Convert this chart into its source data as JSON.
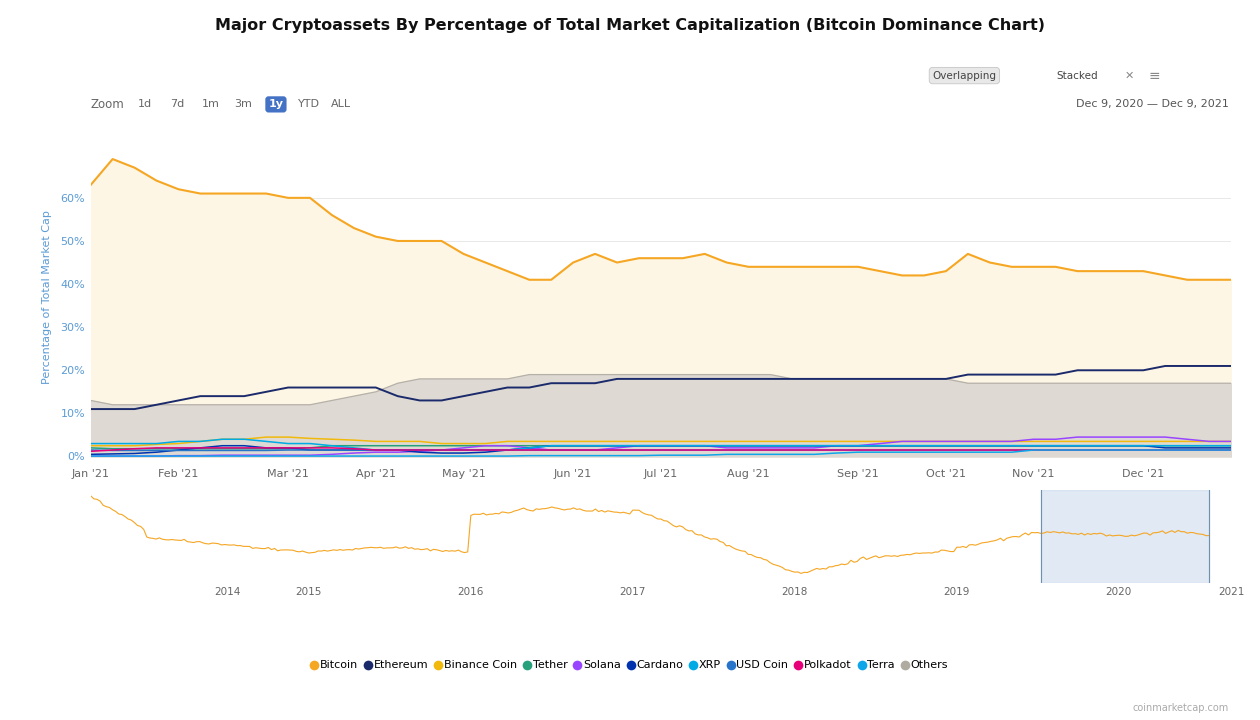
{
  "title": "Major Cryptoassets By Percentage of Total Market Capitalization (Bitcoin Dominance Chart)",
  "ylabel": "Percentage of Total Market Cap",
  "date_range": "Dec 9, 2020 — Dec 9, 2021",
  "zoom_label": "Zoom",
  "zoom_options": [
    "1d",
    "7d",
    "1m",
    "3m",
    "1y",
    "YTD",
    "ALL"
  ],
  "zoom_selected": "1y",
  "watermark": "coinmarketcap.com",
  "background_color": "#ffffff",
  "grid_color": "#e8e8e8",
  "colors": {
    "Bitcoin": "#f5a623",
    "Ethereum": "#1b2a6b",
    "BinanceCoin": "#f0b90b",
    "Tether": "#26a17b",
    "Solana": "#9945ff",
    "Cardano": "#0033ad",
    "XRP": "#00aae4",
    "USDCoin": "#2775ca",
    "Polkadot": "#e6007a",
    "Terra": "#0fa5e9",
    "Others": "#b0aba0"
  },
  "fill_btc": "#fef6e4",
  "fill_others": "#dedad3",
  "legend_items": [
    "Bitcoin",
    "Ethereum",
    "Binance Coin",
    "Tether",
    "Solana",
    "Cardano",
    "XRP",
    "USD Coin",
    "Polkadot",
    "Terra",
    "Others"
  ],
  "legend_colors": [
    "#f5a623",
    "#1b2a6b",
    "#f0b90b",
    "#26a17b",
    "#9945ff",
    "#0033ad",
    "#00aae4",
    "#2775ca",
    "#e6007a",
    "#0fa5e9",
    "#b0aba0"
  ],
  "n_points": 53,
  "bitcoin": [
    63,
    69,
    67,
    64,
    62,
    61,
    61,
    61,
    61,
    60,
    60,
    56,
    53,
    51,
    50,
    50,
    50,
    47,
    45,
    43,
    41,
    41,
    45,
    47,
    45,
    46,
    46,
    46,
    47,
    45,
    44,
    44,
    44,
    44,
    44,
    44,
    43,
    42,
    42,
    43,
    47,
    45,
    44,
    44,
    44,
    43,
    43,
    43,
    43,
    42,
    41,
    41,
    41
  ],
  "ethereum": [
    11,
    11,
    11,
    12,
    13,
    14,
    14,
    14,
    15,
    16,
    16,
    16,
    16,
    16,
    14,
    13,
    13,
    14,
    15,
    16,
    16,
    17,
    17,
    17,
    18,
    18,
    18,
    18,
    18,
    18,
    18,
    18,
    18,
    18,
    18,
    18,
    18,
    18,
    18,
    18,
    19,
    19,
    19,
    19,
    19,
    20,
    20,
    20,
    20,
    21,
    21,
    21,
    21
  ],
  "others": [
    13,
    12,
    12,
    12,
    12,
    12,
    12,
    12,
    12,
    12,
    12,
    13,
    14,
    15,
    17,
    18,
    18,
    18,
    18,
    18,
    19,
    19,
    19,
    19,
    19,
    19,
    19,
    19,
    19,
    19,
    19,
    19,
    18,
    18,
    18,
    18,
    18,
    18,
    18,
    18,
    17,
    17,
    17,
    17,
    17,
    17,
    17,
    17,
    17,
    17,
    17,
    17,
    17
  ],
  "binance": [
    2.5,
    2.5,
    2.5,
    2.8,
    3.0,
    3.5,
    4.0,
    4.0,
    4.5,
    4.5,
    4.2,
    4.0,
    3.8,
    3.5,
    3.5,
    3.5,
    3.0,
    3.0,
    3.0,
    3.5,
    3.5,
    3.5,
    3.5,
    3.5,
    3.5,
    3.5,
    3.5,
    3.5,
    3.5,
    3.5,
    3.5,
    3.5,
    3.5,
    3.5,
    3.5,
    3.5,
    3.5,
    3.5,
    3.5,
    3.5,
    3.5,
    3.5,
    3.5,
    3.5,
    3.5,
    3.5,
    3.5,
    3.5,
    3.5,
    3.5,
    3.5,
    3.5,
    3.5
  ],
  "tether": [
    2.0,
    1.8,
    1.8,
    1.8,
    1.8,
    1.8,
    1.8,
    1.8,
    1.8,
    1.8,
    2.0,
    2.5,
    2.5,
    2.5,
    2.5,
    2.5,
    2.5,
    2.5,
    2.5,
    2.5,
    2.5,
    2.5,
    2.5,
    2.5,
    2.5,
    2.5,
    2.5,
    2.5,
    2.5,
    2.5,
    2.5,
    2.5,
    2.5,
    2.5,
    2.5,
    2.5,
    2.5,
    2.5,
    2.5,
    2.5,
    2.5,
    2.5,
    2.5,
    2.5,
    2.5,
    2.5,
    2.5,
    2.5,
    2.5,
    2.5,
    2.5,
    2.5,
    2.5
  ],
  "solana": [
    0.1,
    0.1,
    0.1,
    0.1,
    0.2,
    0.2,
    0.3,
    0.3,
    0.3,
    0.3,
    0.3,
    0.5,
    0.8,
    1.0,
    1.0,
    1.2,
    1.5,
    2.0,
    2.5,
    2.5,
    2.0,
    1.5,
    1.5,
    1.5,
    2.0,
    2.5,
    2.5,
    2.5,
    2.5,
    2.0,
    2.0,
    2.0,
    2.0,
    2.0,
    2.5,
    2.5,
    3.0,
    3.5,
    3.5,
    3.5,
    3.5,
    3.5,
    3.5,
    4.0,
    4.0,
    4.5,
    4.5,
    4.5,
    4.5,
    4.5,
    4.0,
    3.5,
    3.5
  ],
  "cardano": [
    0.5,
    0.6,
    0.7,
    1.0,
    1.5,
    2.0,
    2.5,
    2.5,
    2.0,
    2.0,
    1.5,
    1.5,
    1.5,
    1.5,
    1.5,
    1.0,
    0.8,
    0.8,
    1.0,
    1.5,
    2.0,
    2.5,
    2.5,
    2.5,
    2.5,
    2.5,
    2.5,
    2.5,
    2.5,
    2.5,
    2.5,
    2.5,
    2.5,
    2.5,
    2.5,
    2.5,
    2.5,
    2.5,
    2.5,
    2.5,
    2.5,
    2.5,
    2.5,
    2.5,
    2.5,
    2.5,
    2.5,
    2.5,
    2.5,
    2.0,
    2.0,
    2.0,
    2.0
  ],
  "xrp": [
    3.0,
    3.0,
    3.0,
    3.0,
    3.5,
    3.5,
    4.0,
    4.0,
    3.5,
    3.0,
    3.0,
    2.5,
    2.0,
    1.5,
    1.5,
    1.5,
    1.5,
    1.5,
    1.5,
    1.5,
    2.0,
    2.5,
    2.5,
    2.5,
    2.5,
    2.5,
    2.5,
    2.5,
    2.5,
    2.5,
    2.5,
    2.5,
    2.5,
    2.5,
    2.5,
    2.5,
    2.5,
    2.5,
    2.5,
    2.5,
    2.5,
    2.5,
    2.5,
    2.5,
    2.5,
    2.5,
    2.5,
    2.5,
    2.5,
    2.5,
    2.5,
    2.5,
    2.5
  ],
  "usdcoin": [
    1.5,
    1.4,
    1.4,
    1.4,
    1.4,
    1.4,
    1.4,
    1.4,
    1.4,
    1.5,
    1.5,
    1.5,
    1.5,
    1.5,
    1.5,
    1.5,
    1.5,
    1.5,
    1.5,
    1.5,
    1.5,
    1.5,
    1.5,
    1.5,
    1.5,
    1.5,
    1.5,
    1.5,
    1.5,
    1.5,
    1.5,
    1.5,
    1.5,
    1.5,
    1.5,
    1.5,
    1.5,
    1.5,
    1.5,
    1.5,
    1.5,
    1.5,
    1.5,
    1.5,
    1.5,
    1.5,
    1.5,
    1.5,
    1.5,
    1.5,
    1.5,
    1.5,
    1.5
  ],
  "polkadot": [
    1.2,
    1.5,
    1.8,
    2.0,
    2.0,
    2.0,
    2.0,
    2.0,
    2.0,
    2.0,
    2.0,
    2.0,
    1.8,
    1.5,
    1.5,
    1.5,
    1.5,
    1.5,
    1.5,
    1.5,
    1.5,
    1.5,
    1.5,
    1.5,
    1.5,
    1.5,
    1.5,
    1.5,
    1.5,
    1.5,
    1.5,
    1.5,
    1.5,
    1.5,
    1.5,
    1.5,
    1.5,
    1.5,
    1.5,
    1.5,
    1.5,
    1.5,
    1.5,
    1.5,
    1.5,
    1.5,
    1.5,
    1.5,
    1.5,
    1.5,
    1.5,
    1.5,
    1.5
  ],
  "terra": [
    0.1,
    0.1,
    0.1,
    0.1,
    0.1,
    0.1,
    0.1,
    0.1,
    0.1,
    0.1,
    0.1,
    0.1,
    0.1,
    0.1,
    0.1,
    0.1,
    0.1,
    0.1,
    0.1,
    0.1,
    0.2,
    0.2,
    0.2,
    0.2,
    0.2,
    0.2,
    0.3,
    0.3,
    0.3,
    0.5,
    0.5,
    0.5,
    0.5,
    0.5,
    0.8,
    1.0,
    1.0,
    1.0,
    1.0,
    1.0,
    1.0,
    1.0,
    1.0,
    1.5,
    1.5,
    1.5,
    1.5,
    1.5,
    1.5,
    1.5,
    1.5,
    1.5,
    1.5
  ],
  "nav_color": "#f5a623",
  "nav_highlight_color": "#c8d8ec"
}
